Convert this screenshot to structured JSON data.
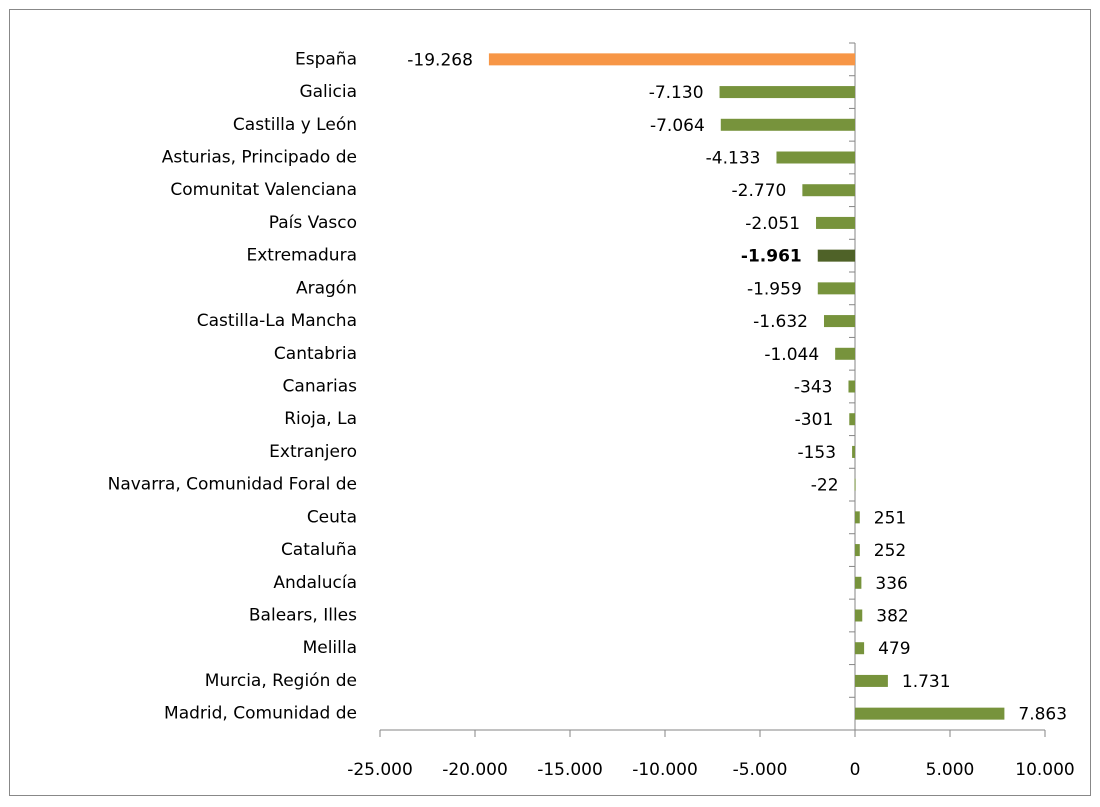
{
  "chart_data": {
    "type": "bar",
    "orientation": "horizontal",
    "categories": [
      "España",
      "Galicia",
      "Castilla y León",
      "Asturias, Principado de",
      "Comunitat Valenciana",
      "País Vasco",
      "Extremadura",
      "Aragón",
      "Castilla-La Mancha",
      "Cantabria",
      "Canarias",
      "Rioja, La",
      "Extranjero",
      "Navarra, Comunidad Foral de",
      "Ceuta",
      "Cataluña",
      "Andalucía",
      "Balears, Illes",
      "Melilla",
      "Murcia, Región de",
      "Madrid, Comunidad de"
    ],
    "values": [
      -19268,
      -7130,
      -7064,
      -4133,
      -2770,
      -2051,
      -1961,
      -1959,
      -1632,
      -1044,
      -343,
      -301,
      -153,
      -22,
      251,
      252,
      336,
      382,
      479,
      1731,
      7863
    ],
    "value_labels": [
      "-19.268",
      "-7.130",
      "-7.064",
      "-4.133",
      "-2.770",
      "-2.051",
      "-1.961",
      "-1.959",
      "-1.632",
      "-1.044",
      "-343",
      "-301",
      "-153",
      "-22",
      "251",
      "252",
      "336",
      "382",
      "479",
      "1.731",
      "7.863"
    ],
    "colors": [
      "#f79646",
      "#77933c",
      "#77933c",
      "#77933c",
      "#77933c",
      "#77933c",
      "#4f6228",
      "#77933c",
      "#77933c",
      "#77933c",
      "#77933c",
      "#77933c",
      "#77933c",
      "#77933c",
      "#77933c",
      "#77933c",
      "#77933c",
      "#77933c",
      "#77933c",
      "#77933c",
      "#77933c"
    ],
    "label_weights": [
      "normal",
      "normal",
      "normal",
      "normal",
      "normal",
      "normal",
      "bold",
      "normal",
      "normal",
      "normal",
      "normal",
      "normal",
      "normal",
      "normal",
      "normal",
      "normal",
      "normal",
      "normal",
      "normal",
      "normal",
      "normal"
    ],
    "xlim": [
      -25000,
      10000
    ],
    "xticks": [
      {
        "value": -25000,
        "label": "-25.000"
      },
      {
        "value": -20000,
        "label": "-20.000"
      },
      {
        "value": -15000,
        "label": "-15.000"
      },
      {
        "value": -10000,
        "label": "-10.000"
      },
      {
        "value": -5000,
        "label": "-5.000"
      },
      0,
      {
        "value": 5000,
        "label": "5.000"
      },
      {
        "value": 10000,
        "label": "10.000"
      }
    ],
    "grid": false
  }
}
